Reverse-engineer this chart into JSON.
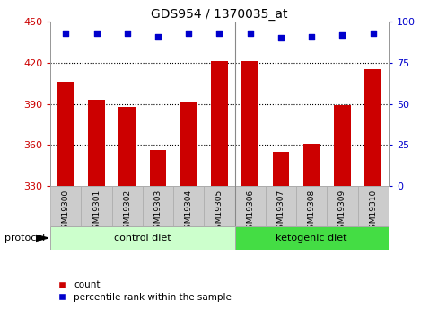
{
  "title": "GDS954 / 1370035_at",
  "samples": [
    "GSM19300",
    "GSM19301",
    "GSM19302",
    "GSM19303",
    "GSM19304",
    "GSM19305",
    "GSM19306",
    "GSM19307",
    "GSM19308",
    "GSM19309",
    "GSM19310"
  ],
  "bar_values": [
    406,
    393,
    388,
    356,
    391,
    421,
    421,
    355,
    361,
    389,
    415
  ],
  "bar_bottom": 330,
  "percentile_values": [
    93,
    93,
    93,
    91,
    93,
    93,
    93,
    90,
    91,
    92,
    93
  ],
  "ylim_left": [
    330,
    450
  ],
  "ylim_right": [
    0,
    100
  ],
  "yticks_left": [
    330,
    360,
    390,
    420,
    450
  ],
  "yticks_right": [
    0,
    25,
    50,
    75,
    100
  ],
  "bar_color": "#cc0000",
  "dot_color": "#0000cc",
  "axis_label_left_color": "#cc0000",
  "axis_label_right_color": "#0000cc",
  "control_diet_samples": 6,
  "control_diet_label": "control diet",
  "ketogenic_diet_label": "ketogenic diet",
  "protocol_label": "protocol",
  "legend_count": "count",
  "legend_percentile": "percentile rank within the sample",
  "bar_width": 0.55,
  "control_bg": "#ccffcc",
  "ketogenic_bg": "#44dd44",
  "sample_bg": "#cccccc"
}
